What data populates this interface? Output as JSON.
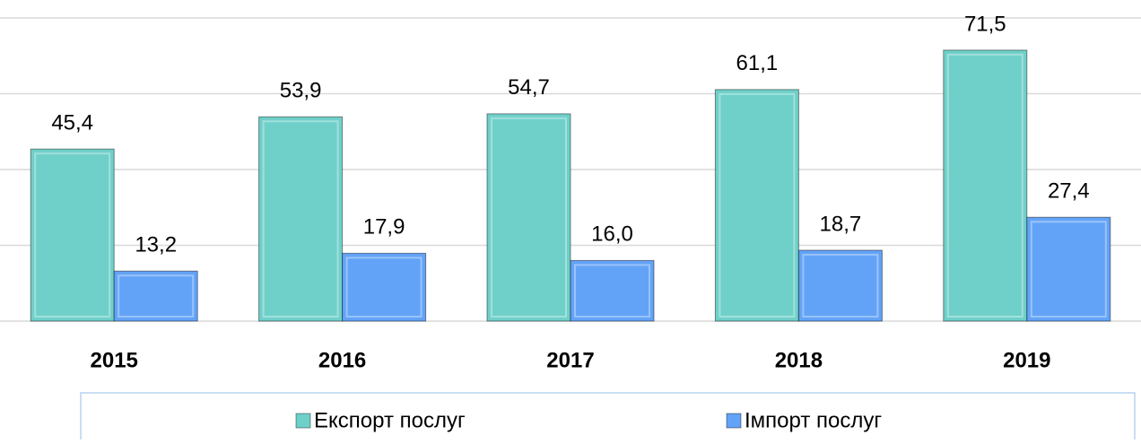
{
  "chart_data": {
    "type": "bar",
    "categories": [
      "2015",
      "2016",
      "2017",
      "2018",
      "2019"
    ],
    "series": [
      {
        "name": "Експорт послуг",
        "color": "#6fd0c9",
        "values": [
          45.4,
          53.9,
          54.7,
          61.1,
          71.5
        ],
        "value_labels": [
          "45,4",
          "53,9",
          "54,7",
          "61,1",
          "71,5"
        ]
      },
      {
        "name": "Імпорт послуг",
        "color": "#63a3f7",
        "values": [
          13.2,
          17.9,
          16.0,
          18.7,
          27.4
        ],
        "value_labels": [
          "13,2",
          "17,9",
          "16,0",
          "18,7",
          "27,4"
        ]
      }
    ],
    "ylim": [
      0,
      80
    ],
    "yticks": [
      0,
      20,
      40,
      60,
      80
    ],
    "grid": true,
    "legend": "bottom"
  }
}
